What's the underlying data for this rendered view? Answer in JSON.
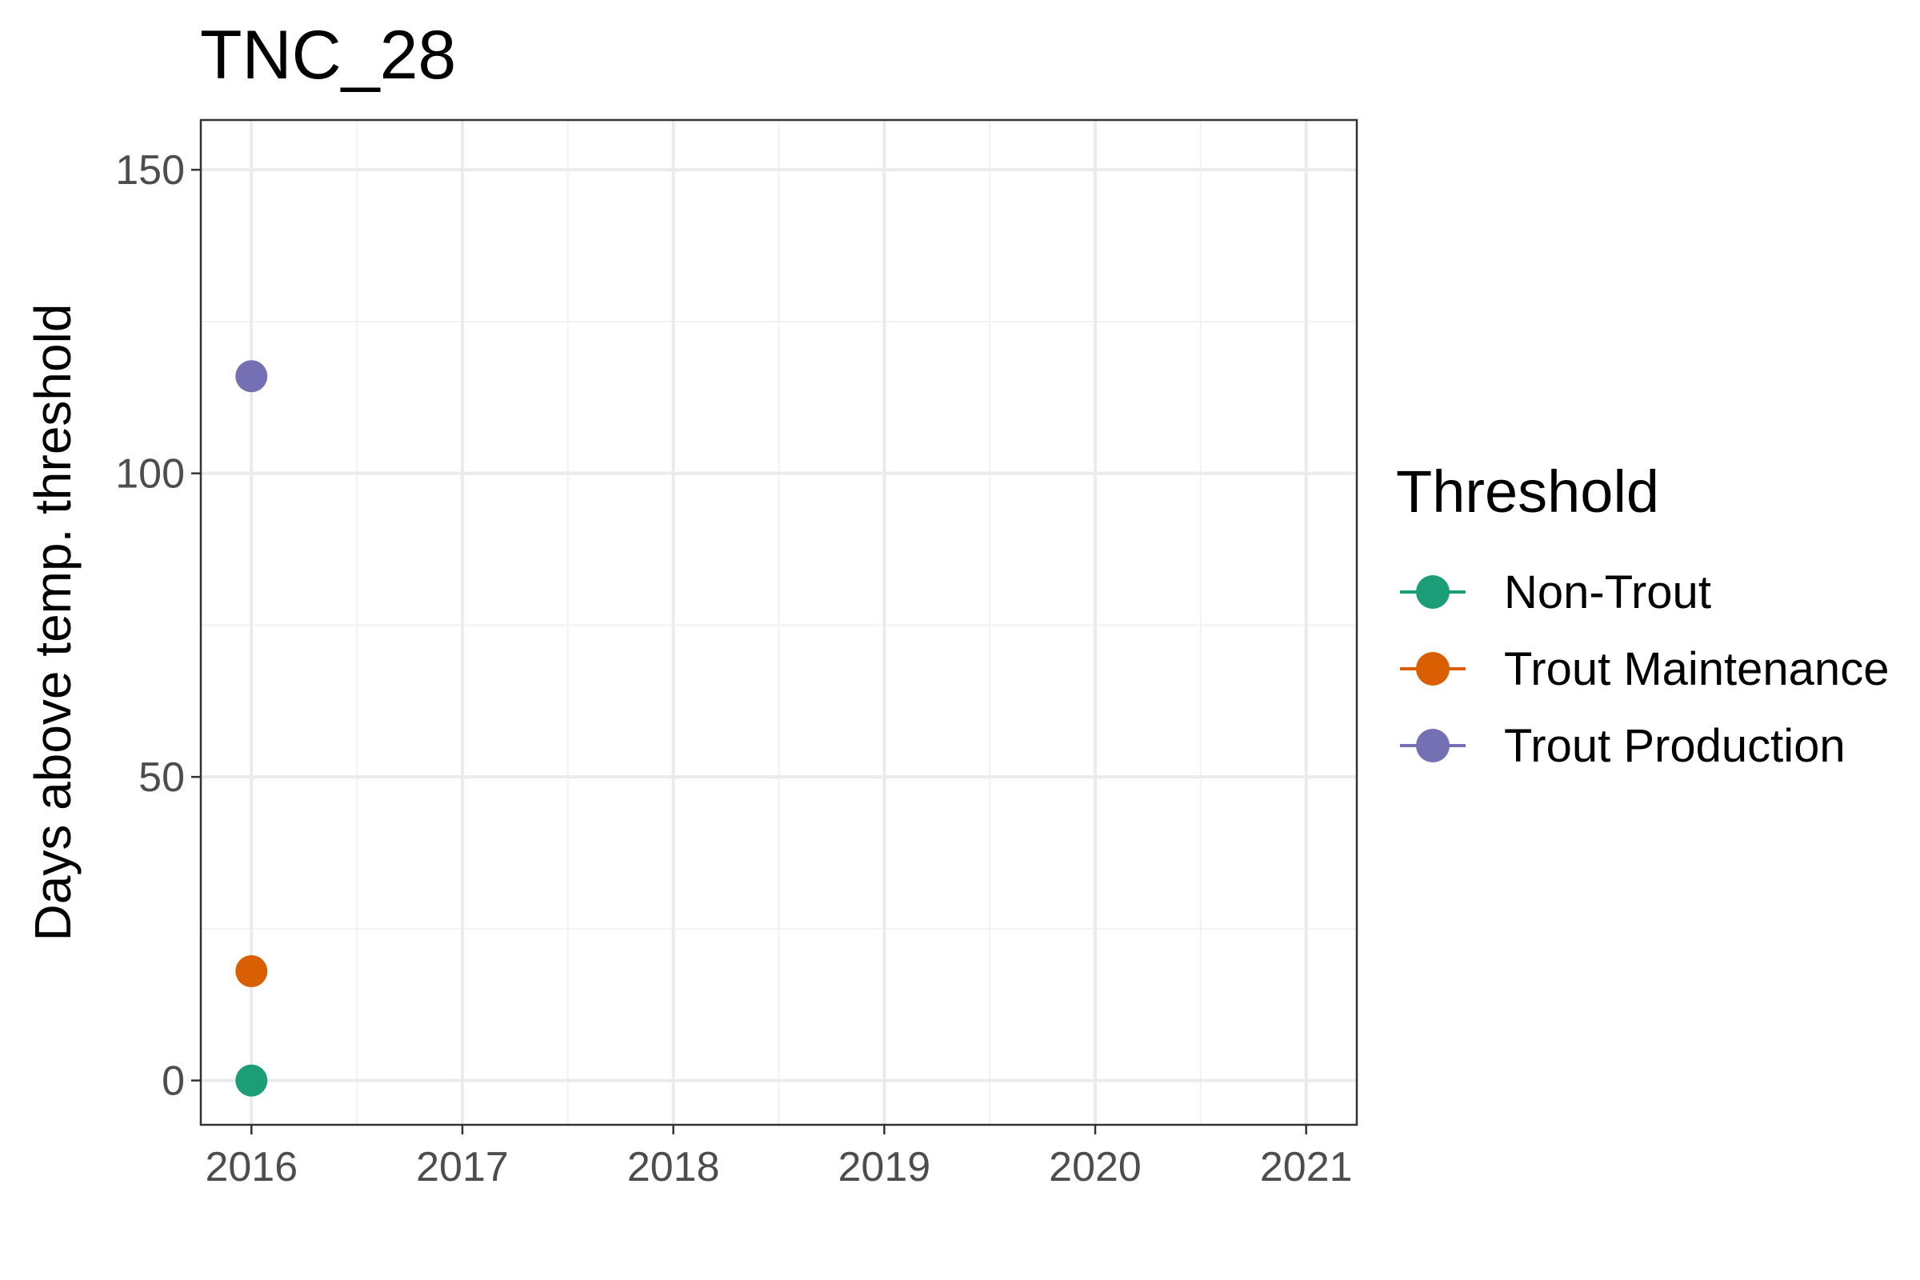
{
  "chart_data": {
    "type": "scatter",
    "title": "TNC_28",
    "xlabel": "",
    "ylabel": "Days above temp. threshold",
    "xlim": [
      2015.76,
      2021.24
    ],
    "ylim": [
      -7.3,
      158.2
    ],
    "x_ticks": [
      2016,
      2017,
      2018,
      2019,
      2020,
      2021
    ],
    "y_ticks": [
      0,
      50,
      100,
      150
    ],
    "grid": true,
    "legend": {
      "title": "Threshold",
      "position": "right"
    },
    "series": [
      {
        "name": "Non-Trout",
        "color": "#1b9e77",
        "points": [
          {
            "x": 2016,
            "y": 0
          }
        ]
      },
      {
        "name": "Trout Maintenance",
        "color": "#d95f02",
        "points": [
          {
            "x": 2016,
            "y": 18
          }
        ]
      },
      {
        "name": "Trout Production",
        "color": "#7570b3",
        "points": [
          {
            "x": 2016,
            "y": 116
          }
        ]
      }
    ]
  }
}
